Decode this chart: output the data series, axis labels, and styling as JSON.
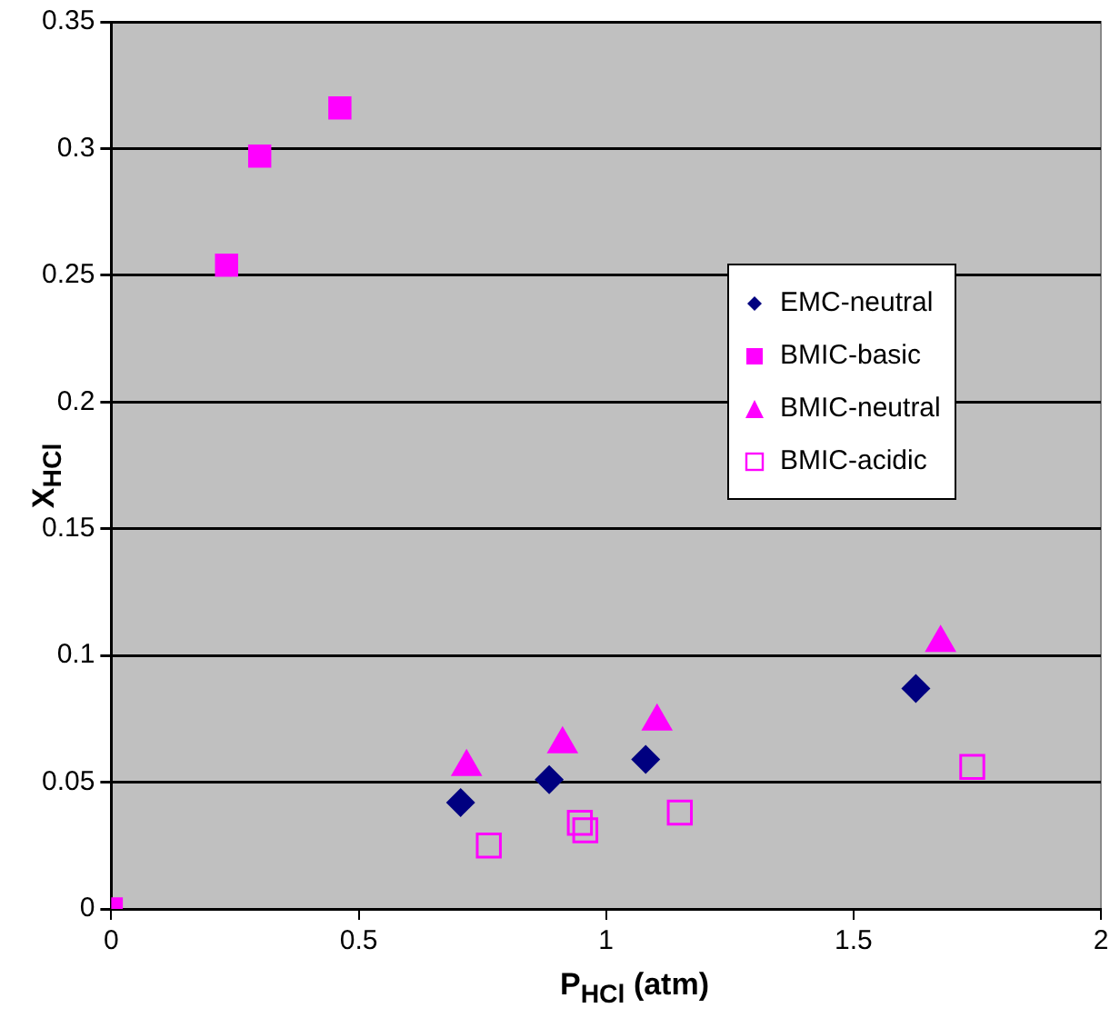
{
  "chart_data": {
    "type": "scatter",
    "xlabel": "P$_{HCl}$ (atm)",
    "ylabel": "X$_{HCl}$",
    "xlim": [
      0,
      2
    ],
    "xticks": [
      0,
      0.5,
      1,
      1.5,
      2
    ],
    "ylim": [
      0,
      0.35
    ],
    "yticks": [
      0,
      0.05,
      0.1,
      0.15,
      0.2,
      0.25,
      0.3,
      0.35
    ],
    "grid": "y",
    "legend": "right",
    "series": [
      {
        "name": "EMC-neutral",
        "color": "#000080",
        "marker": "diamond",
        "x": [
          0.706,
          0.885,
          1.08,
          1.626
        ],
        "values": [
          0.042,
          0.051,
          0.059,
          0.087
        ]
      },
      {
        "name": "BMIC-basic",
        "color": "#ff00ff",
        "marker": "square",
        "x": [
          0,
          0.233,
          0.3,
          0.462
        ],
        "values": [
          0,
          0.254,
          0.297,
          0.316
        ]
      },
      {
        "name": "BMIC-neutral",
        "color": "#ff00ff",
        "marker": "triangle",
        "x": [
          0.718,
          0.912,
          1.103,
          1.676
        ],
        "values": [
          0.056,
          0.065,
          0.074,
          0.105
        ]
      },
      {
        "name": "BMIC-acidic",
        "color": "#ff00ff",
        "marker": "square-open",
        "x": [
          0.763,
          0.947,
          0.958,
          1.149,
          1.74
        ],
        "values": [
          0.025,
          0.034,
          0.031,
          0.038,
          0.056
        ]
      }
    ]
  }
}
